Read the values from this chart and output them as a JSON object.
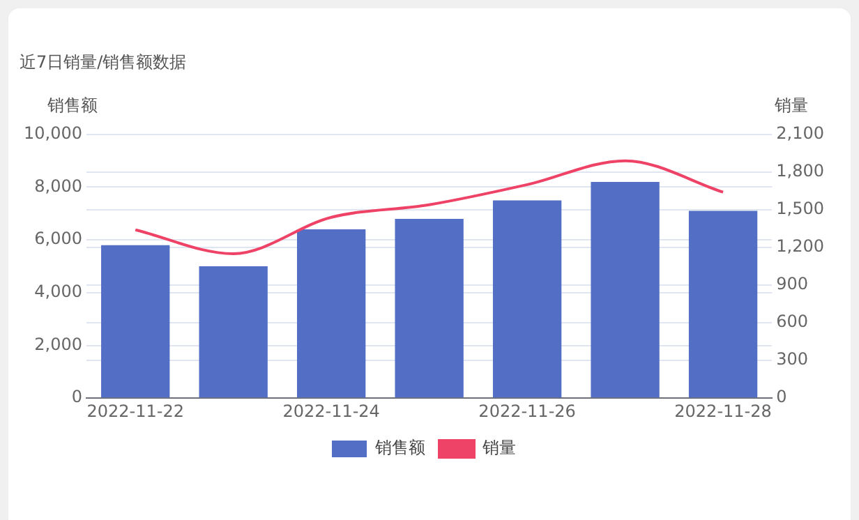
{
  "chart_data": {
    "type": "bar",
    "title": "近7日销量/销售额数据",
    "ylabel": "销售额",
    "y2label": "销量",
    "categories": [
      "2022-11-22",
      null,
      "2022-11-24",
      null,
      "2022-11-26",
      null,
      "2022-11-28"
    ],
    "series": [
      {
        "name": "销售额",
        "color": "#536fc5",
        "values": [
          5800,
          5000,
          6400,
          6800,
          7500,
          8200,
          7100
        ]
      },
      {
        "name": "销量",
        "type": "line",
        "axis": "y2",
        "color": "#ee4266",
        "values": [
          1340,
          1150,
          1440,
          1540,
          1700,
          1890,
          1640
        ]
      }
    ],
    "ylim": [
      0,
      10000
    ],
    "yticks": [
      0,
      {
        "value": 2000,
        "label": "2,000"
      },
      {
        "value": 4000,
        "label": "4,000"
      },
      {
        "value": 6000,
        "label": "6,000"
      },
      {
        "value": 8000,
        "label": "8,000"
      },
      {
        "value": 10000,
        "label": "10,000"
      }
    ],
    "y2lim": [
      0,
      2100
    ],
    "y2ticks": [
      0,
      300,
      600,
      900,
      {
        "value": 1200,
        "label": "1,200"
      },
      {
        "value": 1500,
        "label": "1,500"
      },
      {
        "value": 1800,
        "label": "1,800"
      },
      {
        "value": 2100,
        "label": "2,100"
      }
    ],
    "grid": true,
    "legend": "bottom",
    "marker": "none"
  }
}
